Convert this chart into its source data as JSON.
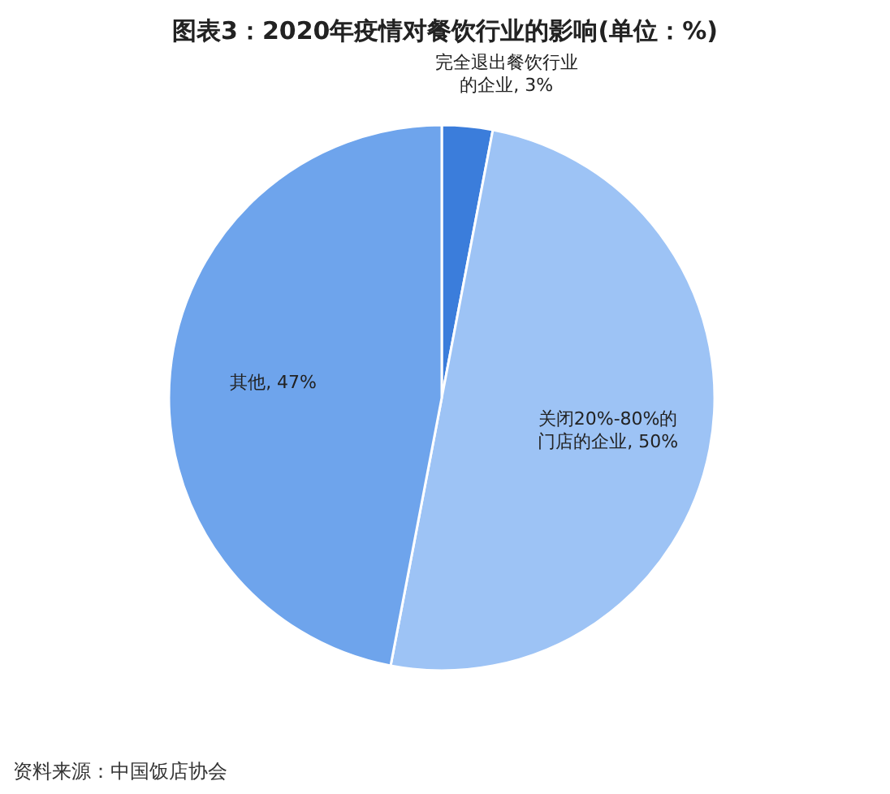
{
  "chart_data": {
    "type": "pie",
    "title": "图表3：2020年疫情对餐饮行业的影响(单位：%)",
    "categories": [
      "完全退出餐饮行业的企业",
      "关闭20%-80%的门店的企业",
      "其他"
    ],
    "values": [
      3,
      50,
      47
    ],
    "value_labels": [
      "3%",
      "50%",
      "47%"
    ],
    "colors": [
      "#3b7ddb",
      "#9dc3f5",
      "#6ea4ec"
    ],
    "annotations": [
      "资料来源：中国饭店协会"
    ]
  }
}
